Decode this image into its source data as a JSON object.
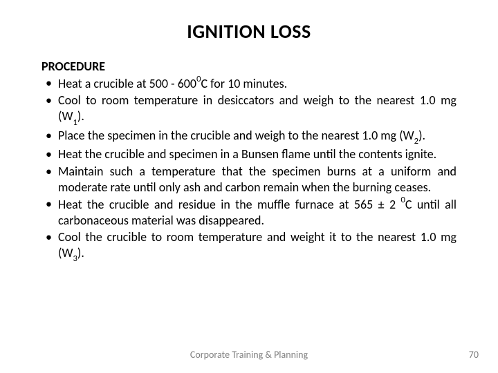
{
  "title": "IGNITION LOSS",
  "section_label": "PROCEDURE",
  "bullets": [
    {
      "html": "Heat a crucible at 500 - 600<span class=\"sup\">0</span>C for 10 minutes."
    },
    {
      "html": "Cool to room temperature in desiccators and weigh to the nearest 1.0 mg (W<span class=\"sub\">1</span>)."
    },
    {
      "html": "Place the specimen in the crucible and weigh to the nearest 1.0 mg (W<span class=\"sub\">2</span>)."
    },
    {
      "html": "Heat the crucible and specimen in a Bunsen flame until the contents ignite."
    },
    {
      "html": "Maintain such a temperature that the specimen burns at a uniform and moderate rate until only ash and carbon remain when the burning ceases."
    },
    {
      "html": "Heat the crucible and residue in the muffle furnace at 565 ± 2 <span class=\"sup\">0</span>C until all carbonaceous material was disappeared."
    },
    {
      "html": "Cool the crucible to room temperature and weight it to the nearest 1.0 mg (W<span class=\"sub\">3</span>)."
    }
  ],
  "footer": "Corporate Training & Planning",
  "page_number": "70",
  "colors": {
    "text": "#000000",
    "footer": "#7f7f7f",
    "background": "#ffffff"
  },
  "typography": {
    "title_fontsize": 28,
    "body_fontsize": 18,
    "footer_fontsize": 14,
    "font_family": "Calibri"
  }
}
